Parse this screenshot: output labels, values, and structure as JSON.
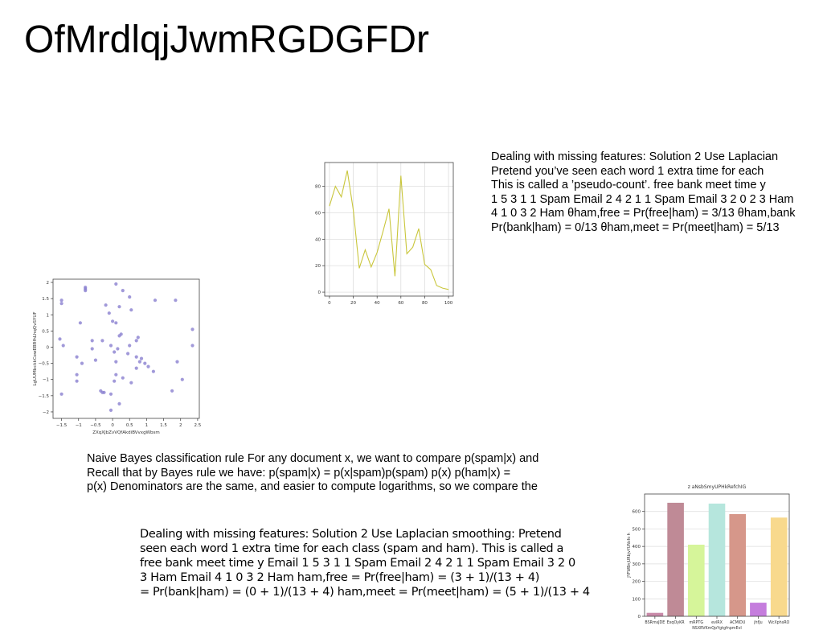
{
  "page": {
    "title": "OfMrdlqjJwmRGDGFDr"
  },
  "text_blocks": [
    {
      "lines": [
        "Dealing with missing features: Solution 2 Use Laplacian",
        "Pretend you’ve seen each word 1 extra time for each",
        "This is called a ’pseudo-count’. free bank meet time y",
        "1 5 3 1 1 Spam Email 2 4 2 1 1 Spam Email 3 2 0 2 3 Ham",
        "4 1 0 3 2 Ham θham,free = Pr(free|ham) = 3/13 θham,bank",
        "Pr(bank|ham) = 0/13 θham,meet = Pr(meet|ham) = 5/13"
      ]
    },
    {
      "lines": [
        "Naive Bayes classification rule For any document x, we want to compare p(spam|x) and",
        "Recall that by Bayes rule we have: p(spam|x) = p(x|spam)p(spam) p(x) p(ham|x) =",
        "p(x) Denominators are the same, and easier to compute logarithms, so we compare the"
      ]
    },
    {
      "lines": [
        "Dealing with missing features: Solution 2 Use Laplacian smoothing: Pretend",
        "seen each word 1 extra time for each class (spam and ham). This is called a",
        "free bank meet time y Email 1 5 3 1 1 Spam Email 2 4 2 1 1 Spam Email 3 2 0",
        "3 Ham Email 4 1 0 3 2 Ham ham,free = Pr(free|ham) = (3 + 1)/(13 + 4)",
        "= Pr(bank|ham) = (0 + 1)/(13 + 4) ham,meet = Pr(meet|ham) = (5 + 1)/(13 + 4)"
      ]
    }
  ],
  "chart_data": [
    {
      "type": "line",
      "title": "",
      "xlabel": "",
      "ylabel": "",
      "xlim": [
        -4,
        104
      ],
      "ylim": [
        -3,
        98
      ],
      "xticks": [
        0,
        20,
        40,
        60,
        80,
        100
      ],
      "yticks": [
        0,
        20,
        40,
        60,
        80
      ],
      "grid": true,
      "color": "#c9c63b",
      "series": [
        {
          "x": [
            0,
            5,
            10,
            15,
            20,
            25,
            30,
            35,
            40,
            45,
            50,
            55,
            60,
            65,
            70,
            75,
            80,
            85,
            90,
            95,
            100
          ],
          "y": [
            65,
            80,
            72,
            92,
            62,
            18,
            32,
            19,
            30,
            46,
            63,
            12,
            88,
            29,
            34,
            48,
            21,
            17,
            5,
            3,
            2
          ]
        }
      ]
    },
    {
      "type": "scatter",
      "title": "",
      "xlabel": "ZXqXJbZvVQfAkdiBVvxgWbsm",
      "ylabel": "LgUUMbckkCowEBRfhLhqQvSYUF",
      "xlim": [
        -1.75,
        2.55
      ],
      "ylim": [
        -2.2,
        2.1
      ],
      "xticks": [
        -1.5,
        -1.0,
        -0.5,
        0.0,
        0.5,
        1.0,
        1.5,
        2.0,
        2.5
      ],
      "yticks": [
        -2.0,
        -1.5,
        -1.0,
        -0.5,
        0.0,
        0.5,
        1.0,
        1.5,
        2.0
      ],
      "grid": false,
      "color": "#8a7fd0",
      "points": [
        [
          -1.5,
          1.45
        ],
        [
          -1.5,
          1.35
        ],
        [
          -1.45,
          0.05
        ],
        [
          -1.55,
          0.25
        ],
        [
          -1.5,
          -1.45
        ],
        [
          -0.8,
          1.85
        ],
        [
          -0.8,
          1.75
        ],
        [
          -0.8,
          1.8
        ],
        [
          -0.95,
          0.75
        ],
        [
          -0.6,
          0.2
        ],
        [
          -0.6,
          -0.05
        ],
        [
          -1.05,
          -0.3
        ],
        [
          -0.9,
          -0.5
        ],
        [
          -1.05,
          -0.85
        ],
        [
          -1.05,
          -1.05
        ],
        [
          -0.5,
          -0.4
        ],
        [
          -0.3,
          0.2
        ],
        [
          -0.35,
          -1.35
        ],
        [
          -0.25,
          -1.4
        ],
        [
          -0.3,
          -1.4
        ],
        [
          -0.2,
          1.3
        ],
        [
          -0.1,
          1.05
        ],
        [
          0.1,
          1.95
        ],
        [
          0.2,
          1.25
        ],
        [
          0.0,
          0.8
        ],
        [
          0.1,
          0.75
        ],
        [
          -0.05,
          0.05
        ],
        [
          0.05,
          -0.15
        ],
        [
          0.15,
          -0.05
        ],
        [
          0.2,
          0.35
        ],
        [
          0.25,
          0.4
        ],
        [
          0.1,
          -0.45
        ],
        [
          0.1,
          -0.85
        ],
        [
          0.3,
          1.75
        ],
        [
          0.5,
          1.55
        ],
        [
          0.55,
          1.15
        ],
        [
          0.5,
          0.05
        ],
        [
          0.45,
          -0.2
        ],
        [
          0.3,
          -0.95
        ],
        [
          0.2,
          -1.75
        ],
        [
          0.05,
          -1.05
        ],
        [
          -0.05,
          -1.45
        ],
        [
          0.55,
          -1.1
        ],
        [
          0.7,
          0.2
        ],
        [
          0.75,
          0.3
        ],
        [
          0.7,
          -0.3
        ],
        [
          0.8,
          -0.45
        ],
        [
          0.85,
          -0.35
        ],
        [
          0.95,
          -0.5
        ],
        [
          1.05,
          -0.6
        ],
        [
          0.7,
          -0.65
        ],
        [
          1.2,
          -0.75
        ],
        [
          1.25,
          1.45
        ],
        [
          1.85,
          1.45
        ],
        [
          1.75,
          -1.35
        ],
        [
          2.05,
          -1.0
        ],
        [
          2.35,
          0.55
        ],
        [
          2.35,
          0.05
        ],
        [
          1.9,
          -0.45
        ],
        [
          -0.05,
          -1.95
        ]
      ]
    },
    {
      "type": "bar",
      "title": "z aNsbSmyUPHkRefchIG",
      "xlabel": "NSXRVKmQpYgtgfnpmEvI",
      "ylabel": "JYFWBnjURbjvYUNcfo h",
      "ylim": [
        0,
        700
      ],
      "yticks": [
        0,
        100,
        200,
        300,
        400,
        500,
        600
      ],
      "grid": true,
      "categories": [
        "BSRmsJDE",
        "ExqOyKR",
        "mRPTG",
        "evlRX",
        "ACMIDU",
        "jhfJu",
        "WcXphsRO"
      ],
      "values": [
        20,
        650,
        410,
        645,
        585,
        78,
        565
      ],
      "colors": [
        "#c98aa9",
        "#bf8a96",
        "#d6f59a",
        "#b6e6dd",
        "#d6978a",
        "#c57ddd",
        "#f8d98d"
      ]
    }
  ]
}
